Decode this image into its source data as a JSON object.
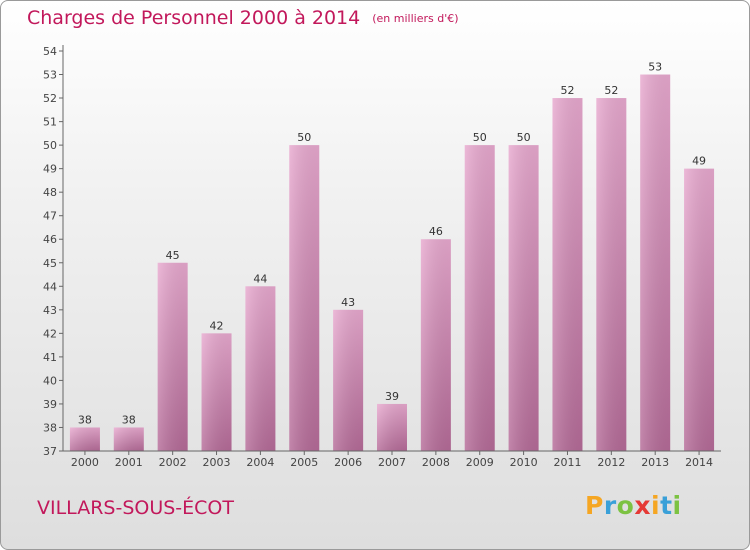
{
  "chart_data": {
    "type": "bar",
    "title": "Charges de Personnel 2000 à 2014",
    "subtitle": "(en milliers d'€)",
    "categories": [
      "2000",
      "2001",
      "2002",
      "2003",
      "2004",
      "2005",
      "2006",
      "2007",
      "2008",
      "2009",
      "2010",
      "2011",
      "2012",
      "2013",
      "2014"
    ],
    "values": [
      38,
      38,
      45,
      42,
      44,
      50,
      43,
      39,
      46,
      50,
      50,
      52,
      52,
      53,
      49
    ],
    "ylim": [
      37,
      54
    ],
    "yticks": [
      37,
      38,
      39,
      40,
      41,
      42,
      43,
      44,
      45,
      46,
      47,
      48,
      49,
      50,
      51,
      52,
      53,
      54
    ],
    "grid": false,
    "bar_color": "#d67fb0"
  },
  "location": "VILLARS-SOUS-ÉCOT",
  "logo": {
    "letters": [
      "P",
      "r",
      "o",
      "x",
      "i",
      "t",
      "i"
    ],
    "colors": [
      "#f5a623",
      "#3aa0d8",
      "#7cc242",
      "#e53935",
      "#f5a623",
      "#3aa0d8",
      "#7cc242"
    ]
  },
  "colors": {
    "accent": "#c2185b"
  }
}
